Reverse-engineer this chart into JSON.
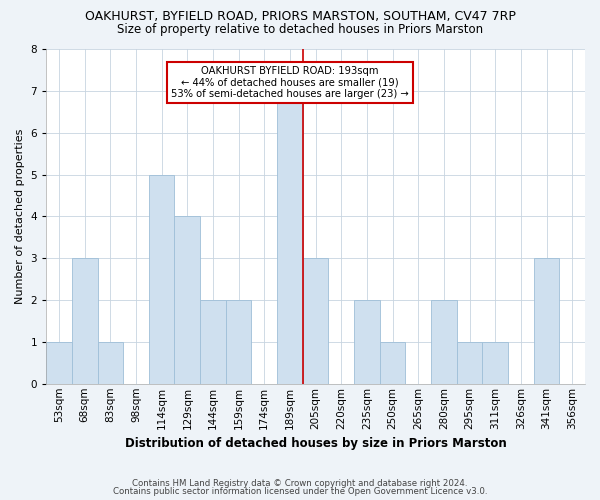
{
  "title": "OAKHURST, BYFIELD ROAD, PRIORS MARSTON, SOUTHAM, CV47 7RP",
  "subtitle": "Size of property relative to detached houses in Priors Marston",
  "xlabel": "Distribution of detached houses by size in Priors Marston",
  "ylabel": "Number of detached properties",
  "bar_labels": [
    "53sqm",
    "68sqm",
    "83sqm",
    "98sqm",
    "114sqm",
    "129sqm",
    "144sqm",
    "159sqm",
    "174sqm",
    "189sqm",
    "205sqm",
    "220sqm",
    "235sqm",
    "250sqm",
    "265sqm",
    "280sqm",
    "295sqm",
    "311sqm",
    "326sqm",
    "341sqm",
    "356sqm"
  ],
  "bar_heights": [
    1,
    3,
    1,
    0,
    5,
    4,
    2,
    2,
    0,
    7,
    3,
    0,
    2,
    1,
    0,
    2,
    1,
    1,
    0,
    3,
    0
  ],
  "bar_color": "#cfe0ef",
  "bar_edgecolor": "#9fbfd8",
  "redline_x": 9,
  "ylim": [
    0,
    8
  ],
  "yticks": [
    0,
    1,
    2,
    3,
    4,
    5,
    6,
    7,
    8
  ],
  "annotation_title": "OAKHURST BYFIELD ROAD: 193sqm",
  "annotation_line1": "← 44% of detached houses are smaller (19)",
  "annotation_line2": "53% of semi-detached houses are larger (23) →",
  "annotation_box_facecolor": "#ffffff",
  "annotation_box_edgecolor": "#cc0000",
  "grid_color": "#c8d4e0",
  "plot_bg_color": "#ffffff",
  "fig_bg_color": "#eef3f8",
  "title_fontsize": 9,
  "subtitle_fontsize": 8.5,
  "ylabel_fontsize": 8,
  "xlabel_fontsize": 8.5,
  "tick_fontsize": 7.5,
  "footer_line1": "Contains HM Land Registry data © Crown copyright and database right 2024.",
  "footer_line2": "Contains public sector information licensed under the Open Government Licence v3.0."
}
